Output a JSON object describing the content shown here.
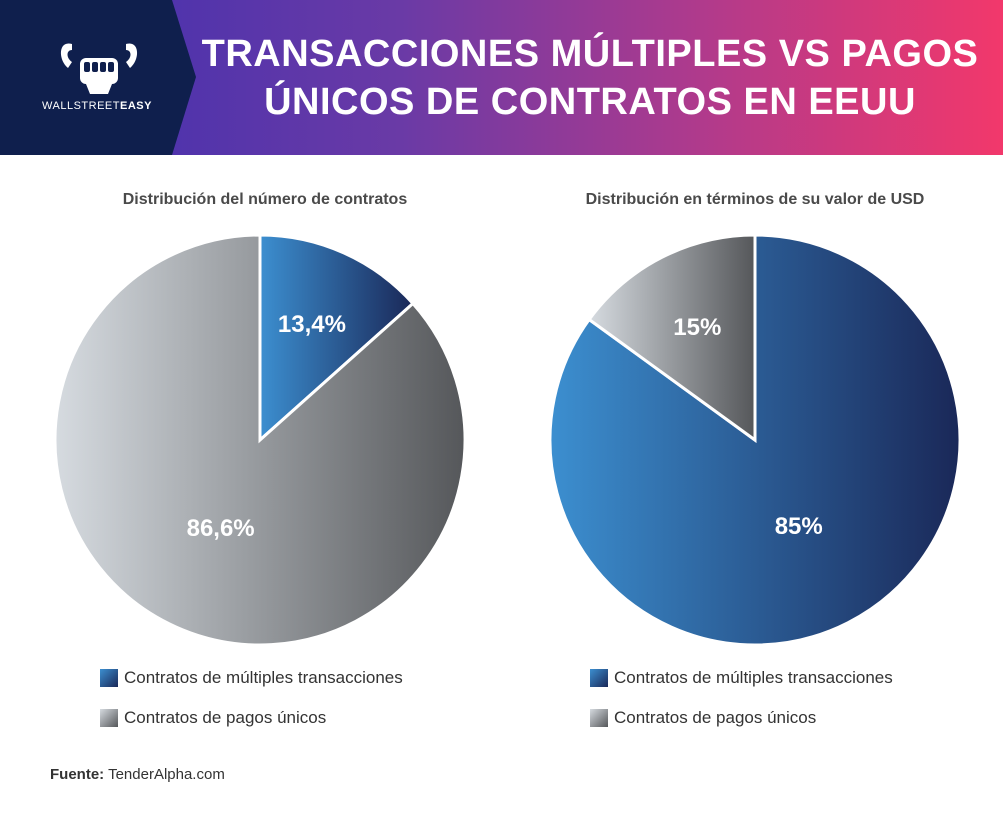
{
  "header": {
    "brand_prefix": "WALLSTREET",
    "brand_suffix": "EASY",
    "title_line1": "TRANSACCIONES MÚLTIPLES VS PAGOS",
    "title_line2": "ÚNICOS DE CONTRATOS EN EEUU"
  },
  "colors": {
    "blue_light": "#3c8fd0",
    "blue_dark": "#1a2858",
    "grey_light": "#d6dbe0",
    "grey_dark": "#55575a",
    "header_start": "#3d2fb0",
    "header_end": "#f2386b",
    "logo_panel": "#0f1f4d"
  },
  "chart_data": [
    {
      "type": "pie",
      "title": "Distribución del número de contratos",
      "categories": [
        "Contratos de múltiples transacciones",
        "Contratos de pagos únicos"
      ],
      "values": [
        13.4,
        86.6
      ],
      "labels": [
        "13,4%",
        "86,6%"
      ],
      "legend": "bottom"
    },
    {
      "type": "pie",
      "title": "Distribución en términos de su valor de USD",
      "categories": [
        "Contratos de múltiples transacciones",
        "Contratos de pagos únicos"
      ],
      "values": [
        85,
        15
      ],
      "labels": [
        "85%",
        "15%"
      ],
      "legend": "bottom"
    }
  ],
  "source": {
    "label": "Fuente:",
    "value": "TenderAlpha.com"
  }
}
